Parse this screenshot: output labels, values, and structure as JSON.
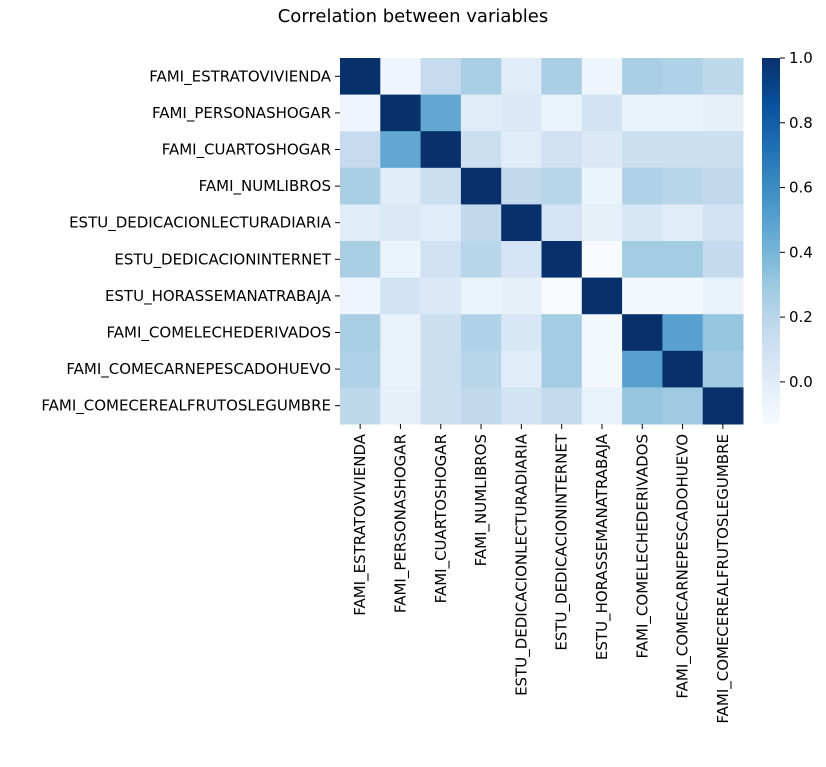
{
  "chart_data": {
    "type": "heatmap",
    "title": "Correlation between variables",
    "rows": [
      "FAMI_ESTRATOVIVIENDA",
      "FAMI_PERSONASHOGAR",
      "FAMI_CUARTOSHOGAR",
      "FAMI_NUMLIBROS",
      "ESTU_DEDICACIONLECTURADIARIA",
      "ESTU_DEDICACIONINTERNET",
      "ESTU_HORASSEMANATRABAJA",
      "FAMI_COMELECHEDERIVADOS",
      "FAMI_COMECARNEPESCADOHUEVO",
      "FAMI_COMECEREALFRUTOSLEGUMBRE"
    ],
    "columns": [
      "FAMI_ESTRATOVIVIENDA",
      "FAMI_PERSONASHOGAR",
      "FAMI_CUARTOSHOGAR",
      "FAMI_NUMLIBROS",
      "ESTU_DEDICACIONLECTURADIARIA",
      "ESTU_DEDICACIONINTERNET",
      "ESTU_HORASSEMANATRABAJA",
      "FAMI_COMELECHEDERIVADOS",
      "FAMI_COMECARNEPESCADOHUEVO",
      "FAMI_COMECEREALFRUTOSLEGUMBRE"
    ],
    "values": [
      [
        1.0,
        -0.08,
        0.15,
        0.25,
        0.0,
        0.25,
        -0.08,
        0.25,
        0.23,
        0.18
      ],
      [
        -0.08,
        1.0,
        0.47,
        0.0,
        0.03,
        -0.06,
        0.08,
        -0.05,
        -0.05,
        -0.03
      ],
      [
        0.15,
        0.47,
        1.0,
        0.12,
        0.0,
        0.1,
        0.03,
        0.12,
        0.12,
        0.12
      ],
      [
        0.25,
        0.0,
        0.12,
        1.0,
        0.17,
        0.2,
        -0.06,
        0.23,
        0.2,
        0.17
      ],
      [
        0.0,
        0.03,
        0.0,
        0.17,
        1.0,
        0.07,
        -0.03,
        0.05,
        0.0,
        0.08
      ],
      [
        0.25,
        -0.06,
        0.1,
        0.2,
        0.07,
        1.0,
        -0.13,
        0.28,
        0.28,
        0.16
      ],
      [
        -0.08,
        0.08,
        0.03,
        -0.06,
        -0.03,
        -0.13,
        1.0,
        -0.1,
        -0.1,
        -0.05
      ],
      [
        0.25,
        -0.05,
        0.12,
        0.23,
        0.05,
        0.28,
        -0.1,
        1.0,
        0.5,
        0.32
      ],
      [
        0.23,
        -0.05,
        0.12,
        0.2,
        0.0,
        0.28,
        -0.1,
        0.5,
        1.0,
        0.29
      ],
      [
        0.18,
        -0.03,
        0.12,
        0.17,
        0.08,
        0.16,
        -0.05,
        0.32,
        0.29,
        1.0
      ]
    ],
    "vmin": -0.13,
    "vmax": 1.0,
    "colorbar": {
      "ticks": [
        0.0,
        0.2,
        0.4,
        0.6,
        0.8,
        1.0
      ],
      "tick_labels": [
        "0.0",
        "0.2",
        "0.4",
        "0.6",
        "0.8",
        "1.0"
      ]
    },
    "colormap": "Blues",
    "colors": {
      "low": "#f7fbff",
      "high": "#08306b"
    }
  }
}
